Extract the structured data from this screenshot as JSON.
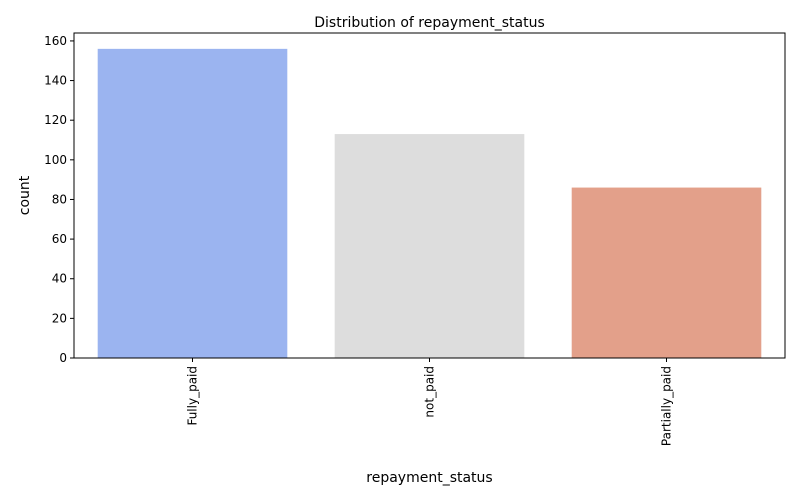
{
  "chart_data": {
    "type": "bar",
    "title": "Distribution of repayment_status",
    "xlabel": "repayment_status",
    "ylabel": "count",
    "categories": [
      "Fully_paid",
      "not_paid",
      "Partially_paid"
    ],
    "values": [
      156,
      113,
      86
    ],
    "colors": [
      "#9bb4f0",
      "#dddddd",
      "#e3a08a"
    ],
    "ylim": [
      0,
      164
    ],
    "yticks": [
      0,
      20,
      40,
      60,
      80,
      100,
      120,
      140,
      160
    ],
    "grid": false,
    "legend": "none"
  }
}
